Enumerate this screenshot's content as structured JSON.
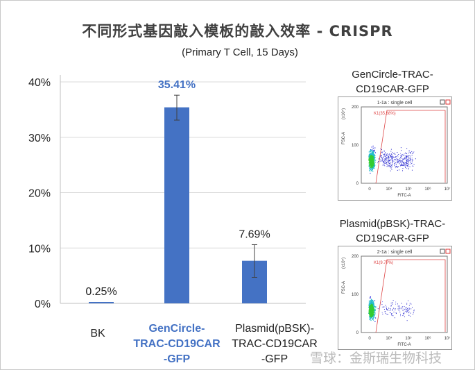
{
  "chart_data": {
    "type": "bar",
    "title": "不同形式基因敲入模板的敲入效率 - CRISPR",
    "subtitle": "(Primary T Cell, 15 Days)",
    "categories": [
      "BK",
      "GenCircle-TRAC-CD19CAR-GFP",
      "Plasmid(pBSK)-TRAC-CD19CAR-GFP"
    ],
    "category_lines": [
      [
        "BK"
      ],
      [
        "GenCircle-",
        "TRAC-CD19CAR",
        "-GFP"
      ],
      [
        "Plasmid(pBSK)-",
        "TRAC-CD19CAR",
        "-GFP"
      ]
    ],
    "values": [
      0.25,
      35.41,
      7.69
    ],
    "data_labels": [
      "0.25%",
      "35.41%",
      "7.69%"
    ],
    "error": [
      [
        0.25,
        0.25
      ],
      [
        33.1,
        37.6
      ],
      [
        4.7,
        10.6
      ]
    ],
    "ylim": [
      0,
      40
    ],
    "yticks": [
      "0%",
      "10%",
      "20%",
      "30%",
      "40%"
    ],
    "grid": true,
    "bar_color": "#4472C4",
    "highlight_color": "#4472C4",
    "highlight_index": 1
  },
  "flow_plots": [
    {
      "label_lines": [
        "GenCircle-TRAC-",
        "CD19CAR-GFP"
      ],
      "panel_title": "1-1a : single cell",
      "gate": "K1(35.88%)",
      "positive_fraction": 0.3588
    },
    {
      "label_lines": [
        "Plasmid(pBSK)-TRAC-",
        "CD19CAR-GFP"
      ],
      "panel_title": "2-1a : single cell",
      "gate": "K1(9.77%)",
      "positive_fraction": 0.0977
    }
  ],
  "flow_axes": {
    "y_label": "FSC-A",
    "y_unit": "(x10⁴)",
    "y_ticks": [
      "0",
      "100",
      "200"
    ],
    "x_label": "FITC-A",
    "x_ticks": [
      "0",
      "10⁴",
      "10⁵",
      "10⁶",
      "10⁷"
    ]
  },
  "watermark": "雪球：金斯瑞生物科技"
}
